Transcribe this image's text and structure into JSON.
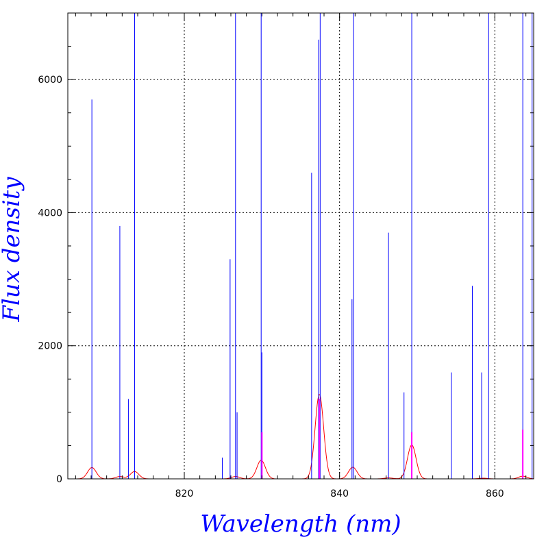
{
  "chart_data": {
    "type": "line",
    "title": "",
    "xlabel": "Wavelength (nm)",
    "ylabel": "Flux density",
    "xlim": [
      805,
      865
    ],
    "ylim": [
      0,
      7000
    ],
    "x_ticks": [
      820,
      840,
      860
    ],
    "x_tick_labels": [
      "820",
      "840",
      "860"
    ],
    "y_ticks": [
      0,
      2000,
      4000,
      6000
    ],
    "y_tick_labels": [
      "0",
      "2000",
      "4000",
      "6000"
    ],
    "x_minor_step": 2,
    "y_minor_step": 500,
    "grid": true,
    "colors": {
      "lines": "#0000ff",
      "smoothed": "#ff0000",
      "overlap": "#ff00ff",
      "labels": "#0000ff"
    },
    "series": [
      {
        "kind": "emission-lines",
        "color": "#0000ff",
        "points": [
          [
            808.1,
            5700
          ],
          [
            811.7,
            3800
          ],
          [
            812.8,
            1200
          ],
          [
            813.6,
            7000
          ],
          [
            824.9,
            320
          ],
          [
            825.9,
            3300
          ],
          [
            826.6,
            7000
          ],
          [
            826.8,
            1000
          ],
          [
            829.9,
            7000
          ],
          [
            830.0,
            1900
          ],
          [
            836.4,
            4600
          ],
          [
            837.3,
            6600
          ],
          [
            837.5,
            7000
          ],
          [
            841.6,
            2700
          ],
          [
            841.8,
            7000
          ],
          [
            846.3,
            3700
          ],
          [
            848.3,
            1300
          ],
          [
            849.3,
            7000
          ],
          [
            854.4,
            1600
          ],
          [
            857.1,
            2900
          ],
          [
            858.3,
            1600
          ],
          [
            859.2,
            7000
          ],
          [
            863.6,
            7000
          ],
          [
            864.8,
            7000
          ]
        ]
      },
      {
        "kind": "smoothed-profile",
        "color": "#ff0000",
        "peaks": [
          [
            808.1,
            170
          ],
          [
            811.7,
            35
          ],
          [
            813.6,
            110
          ],
          [
            826.6,
            35
          ],
          [
            829.9,
            280
          ],
          [
            837.4,
            1270
          ],
          [
            841.7,
            175
          ],
          [
            846.3,
            15
          ],
          [
            849.3,
            510
          ],
          [
            858.5,
            10
          ],
          [
            863.6,
            40
          ]
        ]
      },
      {
        "kind": "overlap-lines",
        "color": "#ff00ff",
        "points": [
          [
            830.0,
            700
          ],
          [
            837.4,
            1200
          ],
          [
            849.3,
            700
          ],
          [
            863.6,
            740
          ]
        ]
      }
    ]
  }
}
